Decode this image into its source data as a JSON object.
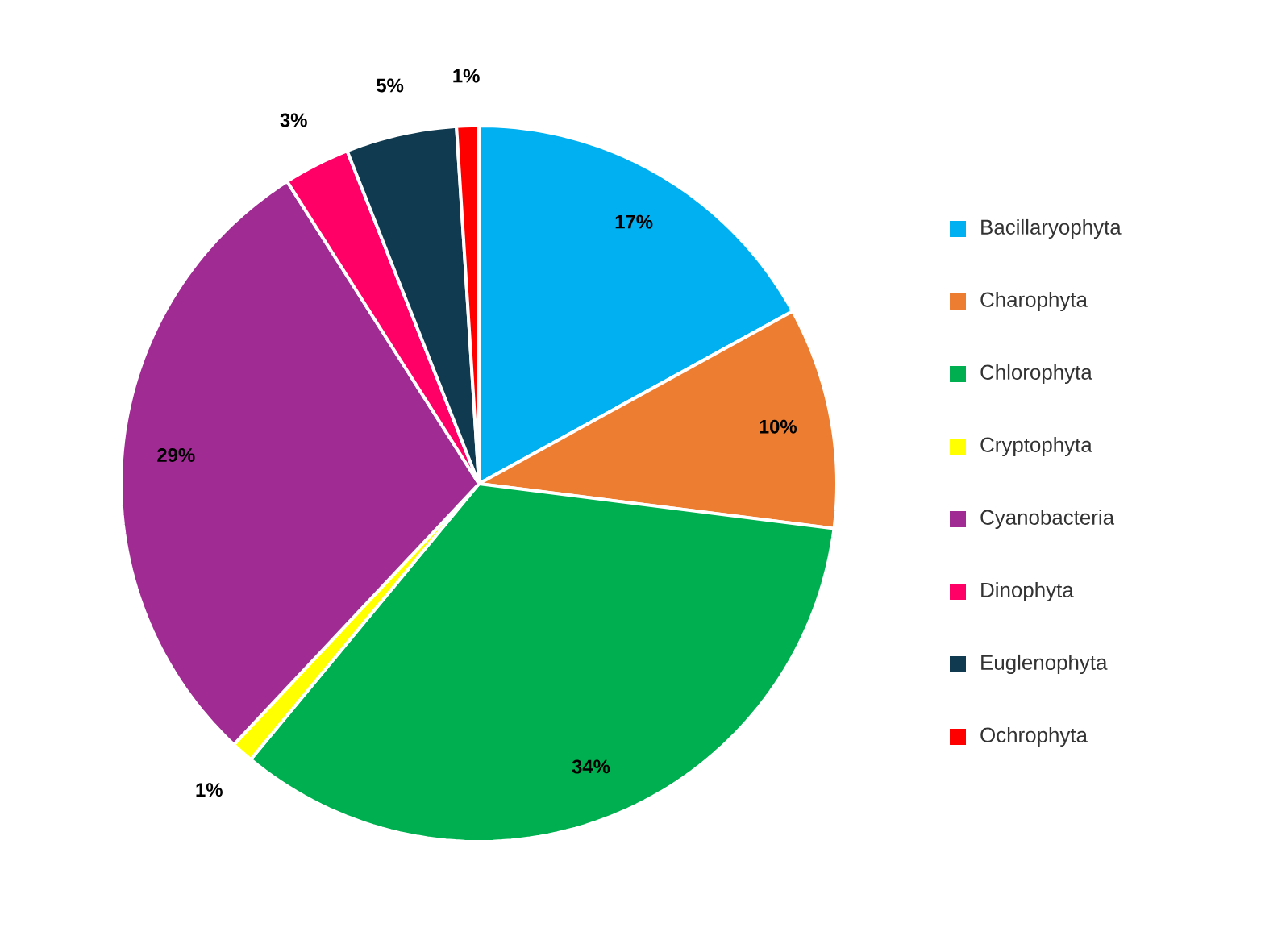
{
  "chart_data": {
    "type": "pie",
    "categories": [
      "Bacillaryophyta",
      "Charophyta",
      "Chlorophyta",
      "Cryptophyta",
      "Cyanobacteria",
      "Dinophyta",
      "Euglenophyta",
      "Ochrophyta"
    ],
    "values": [
      17,
      10,
      34,
      1,
      29,
      3,
      5,
      1
    ],
    "colors": [
      "#00b0f0",
      "#ed7d31",
      "#00b050",
      "#ffff00",
      "#a02b93",
      "#ff0066",
      "#0f3a50",
      "#ff0000"
    ],
    "value_labels": [
      "17%",
      "10%",
      "34%",
      "1%",
      "29%",
      "3%",
      "5%",
      "1%"
    ],
    "legend": "right"
  }
}
